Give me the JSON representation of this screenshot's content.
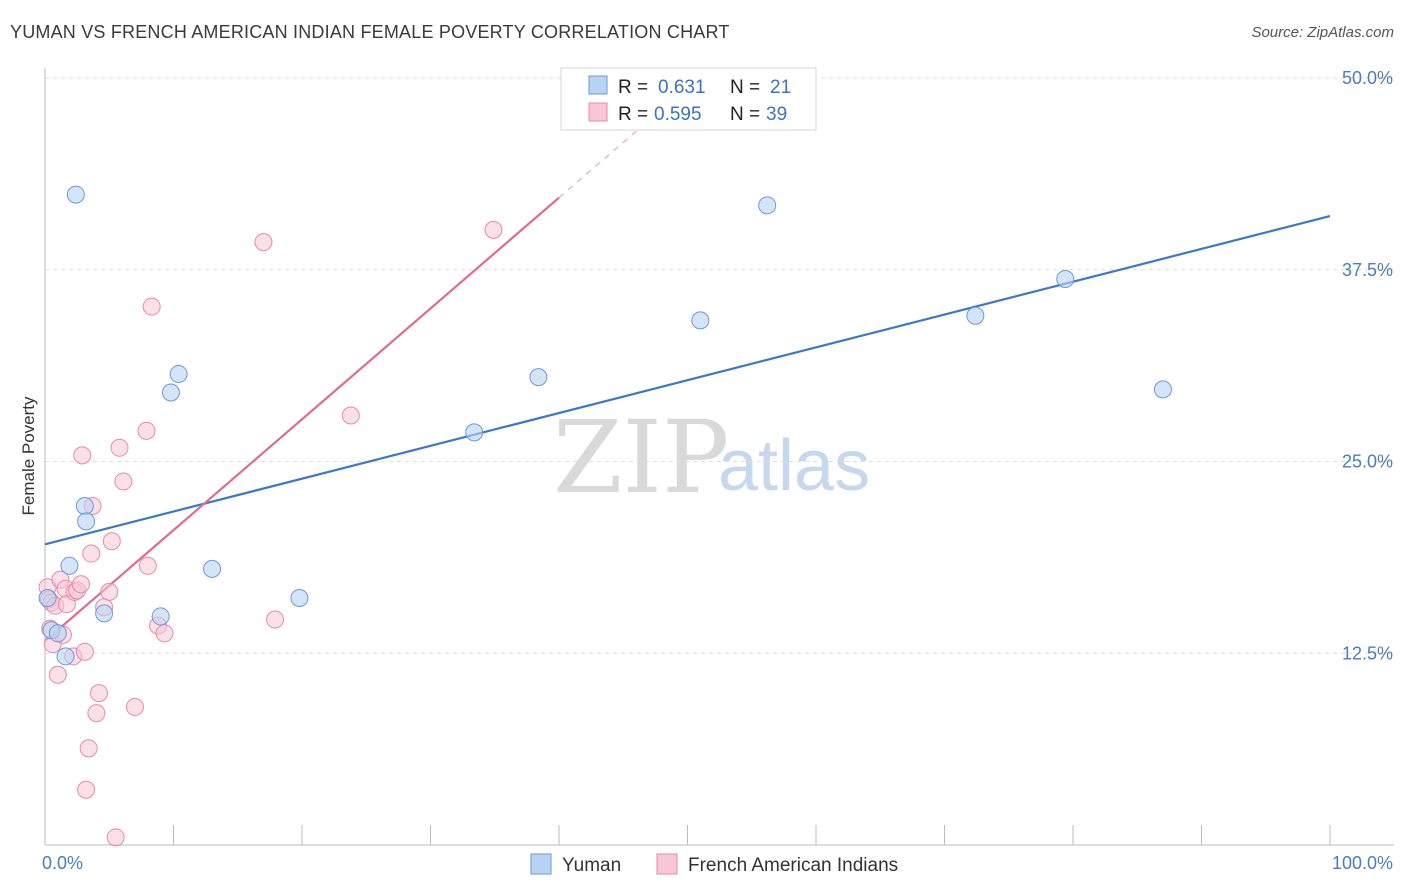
{
  "header": {
    "title": "YUMAN VS FRENCH AMERICAN INDIAN FEMALE POVERTY CORRELATION CHART",
    "source": "Source: ZipAtlas.com"
  },
  "watermark": {
    "zip": "ZIP",
    "atlas": "atlas"
  },
  "colors": {
    "yuman_fill": "#b9d3f5",
    "yuman_stroke": "#6a9ad8",
    "yuman_line": "#3a78cc",
    "french_fill": "#f8c6d6",
    "french_stroke": "#e88aa8",
    "french_line": "#e06a92",
    "grid": "#dedede",
    "label": "#4a7cc0"
  },
  "legend": {
    "rows": [
      {
        "r_label": "R =",
        "r_value": "0.631",
        "n_label": "N =",
        "n_value": "21"
      },
      {
        "r_label": "R =",
        "r_value": "0.595",
        "n_label": "N =",
        "n_value": "39"
      }
    ]
  },
  "chart_data": {
    "type": "scatter",
    "title": "YUMAN VS FRENCH AMERICAN INDIAN FEMALE POVERTY CORRELATION CHART",
    "xlabel": "",
    "ylabel": "Female Poverty",
    "xlim": [
      0,
      100
    ],
    "ylim": [
      0,
      50
    ],
    "x_tick_labels": [
      "0.0%",
      "100.0%"
    ],
    "y_ticks": [
      12.5,
      25.0,
      37.5,
      50.0
    ],
    "y_tick_labels": [
      "12.5%",
      "25.0%",
      "37.5%",
      "50.0%"
    ],
    "grid": true,
    "legend_position": "top-center",
    "series": [
      {
        "name": "Yuman",
        "R": 0.631,
        "N": 21,
        "trend": {
          "x": [
            0,
            100
          ],
          "y": [
            19.6,
            41.0
          ]
        },
        "points": [
          {
            "x": 0.2,
            "y": 16.1
          },
          {
            "x": 0.5,
            "y": 14.0
          },
          {
            "x": 1.0,
            "y": 13.8
          },
          {
            "x": 1.6,
            "y": 12.3
          },
          {
            "x": 1.9,
            "y": 18.2
          },
          {
            "x": 2.4,
            "y": 42.4
          },
          {
            "x": 3.1,
            "y": 22.1
          },
          {
            "x": 3.2,
            "y": 21.1
          },
          {
            "x": 4.6,
            "y": 15.1
          },
          {
            "x": 9.0,
            "y": 14.9
          },
          {
            "x": 9.8,
            "y": 29.5
          },
          {
            "x": 10.4,
            "y": 30.7
          },
          {
            "x": 13.0,
            "y": 18.0
          },
          {
            "x": 19.8,
            "y": 16.1
          },
          {
            "x": 33.4,
            "y": 26.9
          },
          {
            "x": 38.4,
            "y": 30.5
          },
          {
            "x": 51.0,
            "y": 34.2
          },
          {
            "x": 56.2,
            "y": 41.7
          },
          {
            "x": 72.4,
            "y": 34.5
          },
          {
            "x": 79.4,
            "y": 36.9
          },
          {
            "x": 87.0,
            "y": 29.7
          }
        ]
      },
      {
        "name": "French American Indians",
        "R": 0.595,
        "N": 39,
        "trend": {
          "x": [
            0,
            40
          ],
          "y": [
            13.3,
            42.2
          ]
        },
        "trend_dashed": {
          "x": [
            40,
            47.5
          ],
          "y": [
            42.2,
            47.6
          ]
        },
        "points": [
          {
            "x": 0.2,
            "y": 16.8
          },
          {
            "x": 0.3,
            "y": 16.0
          },
          {
            "x": 0.5,
            "y": 15.8
          },
          {
            "x": 0.6,
            "y": 13.1
          },
          {
            "x": 0.8,
            "y": 15.6
          },
          {
            "x": 1.0,
            "y": 11.1
          },
          {
            "x": 1.2,
            "y": 17.3
          },
          {
            "x": 1.4,
            "y": 13.7
          },
          {
            "x": 1.6,
            "y": 16.7
          },
          {
            "x": 1.7,
            "y": 15.7
          },
          {
            "x": 2.2,
            "y": 12.3
          },
          {
            "x": 2.3,
            "y": 16.5
          },
          {
            "x": 2.5,
            "y": 16.6
          },
          {
            "x": 2.8,
            "y": 17.0
          },
          {
            "x": 2.9,
            "y": 25.4
          },
          {
            "x": 3.1,
            "y": 12.6
          },
          {
            "x": 3.2,
            "y": 3.6
          },
          {
            "x": 3.4,
            "y": 6.3
          },
          {
            "x": 3.6,
            "y": 19.0
          },
          {
            "x": 3.7,
            "y": 22.1
          },
          {
            "x": 4.0,
            "y": 8.6
          },
          {
            "x": 4.2,
            "y": 9.9
          },
          {
            "x": 4.6,
            "y": 15.5
          },
          {
            "x": 5.0,
            "y": 16.5
          },
          {
            "x": 5.2,
            "y": 19.8
          },
          {
            "x": 5.5,
            "y": 0.5
          },
          {
            "x": 5.8,
            "y": 25.9
          },
          {
            "x": 6.1,
            "y": 23.7
          },
          {
            "x": 7.0,
            "y": 9.0
          },
          {
            "x": 7.9,
            "y": 27.0
          },
          {
            "x": 8.0,
            "y": 18.2
          },
          {
            "x": 8.3,
            "y": 35.1
          },
          {
            "x": 8.8,
            "y": 14.3
          },
          {
            "x": 9.3,
            "y": 13.8
          },
          {
            "x": 17.0,
            "y": 39.3
          },
          {
            "x": 17.9,
            "y": 14.7
          },
          {
            "x": 23.8,
            "y": 28.0
          },
          {
            "x": 34.9,
            "y": 40.1
          },
          {
            "x": 0.4,
            "y": 14.1
          }
        ]
      }
    ]
  }
}
